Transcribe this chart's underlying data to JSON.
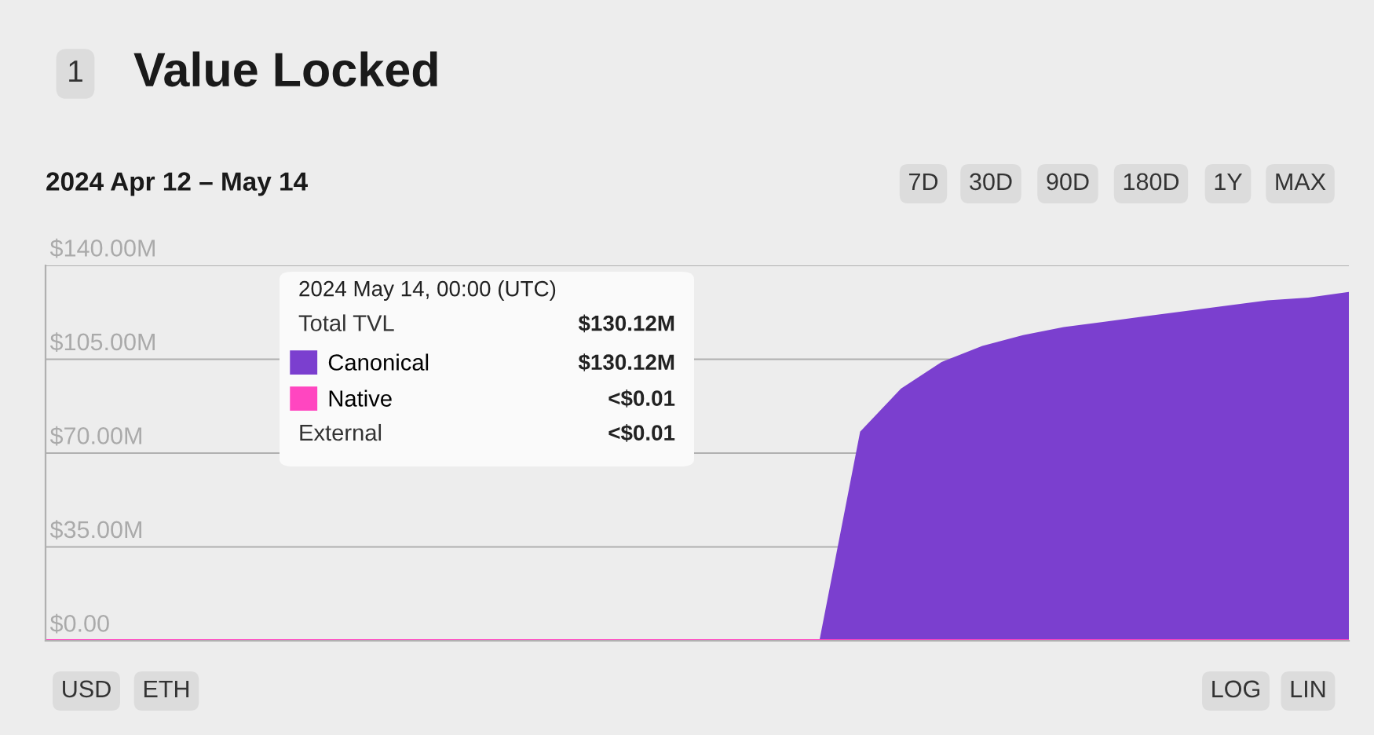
{
  "chart_data": {
    "type": "area",
    "title": "Value Locked",
    "subtitle": "2024 Apr 12 – May 14",
    "annotations": [
      "1",
      "7D",
      "30D",
      "90D",
      "180D",
      "1Y",
      "MAX",
      "USD",
      "ETH",
      "LOG",
      "LIN",
      "2024 May 14, 00:00 (UTC)",
      "Total TVL",
      "$130.12M",
      "$130.12M",
      "<$0.01",
      "External",
      "<$0.01"
    ],
    "categories": [
      null,
      null,
      null,
      null,
      null,
      null,
      null,
      null,
      null,
      null,
      null,
      null,
      null,
      null,
      null,
      null,
      null,
      null,
      null,
      null,
      null,
      null,
      null,
      null,
      null,
      null,
      null,
      null,
      null,
      null,
      null,
      null,
      null
    ],
    "series": [
      {
        "name": "Native",
        "type": "line",
        "color": "#ff46c0",
        "values": [
          0,
          0,
          0,
          0,
          0,
          0,
          0,
          0,
          0,
          0,
          0,
          0,
          0,
          0,
          0,
          0,
          0,
          0,
          0,
          0,
          0,
          0,
          0,
          0,
          0,
          0,
          0,
          0,
          0,
          0,
          0,
          0,
          0
        ]
      },
      {
        "name": "Canonical",
        "color": "#7b3fcf",
        "values": [
          0,
          0,
          0,
          0,
          0,
          0,
          0,
          0,
          0,
          0,
          0,
          0,
          0,
          0,
          0,
          0,
          0,
          0,
          0,
          0,
          78,
          94,
          104,
          110,
          114,
          117,
          119,
          121,
          123,
          125,
          127,
          128,
          130.12
        ]
      }
    ],
    "ylim": [
      0,
      140
    ],
    "yticks": [
      {
        "value": 0,
        "label": "$0.00"
      },
      {
        "value": 35,
        "label": "$35.00M"
      },
      {
        "value": 70,
        "label": "$70.00M"
      },
      {
        "value": 105,
        "label": "$105.00M"
      },
      {
        "value": 140,
        "label": "$140.00M"
      }
    ],
    "grid": "y",
    "legend": "top left"
  }
}
